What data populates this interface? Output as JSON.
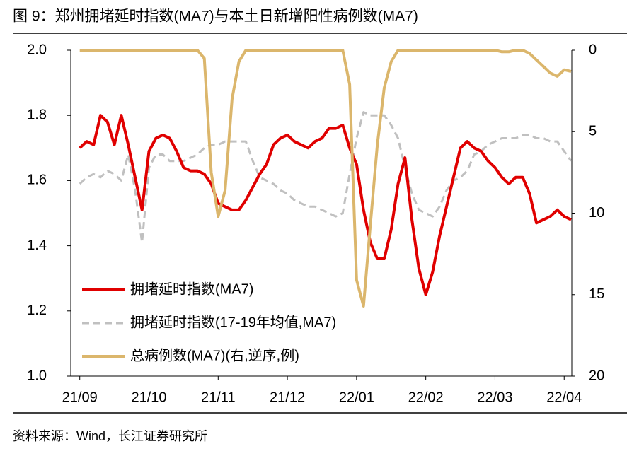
{
  "chart_data": {
    "type": "line",
    "title": "图 9：郑州拥堵延时指数(MA7)与本土日新增阳性病例数(MA7)",
    "source": "资料来源：Wind，长江证券研究所",
    "x": [
      0,
      0.1,
      0.2,
      0.3,
      0.4,
      0.5,
      0.6,
      0.7,
      0.8,
      0.9,
      1,
      1.1,
      1.2,
      1.3,
      1.4,
      1.5,
      1.6,
      1.7,
      1.8,
      1.9,
      2,
      2.1,
      2.2,
      2.3,
      2.4,
      2.5,
      2.6,
      2.7,
      2.8,
      2.9,
      3,
      3.1,
      3.2,
      3.3,
      3.4,
      3.5,
      3.6,
      3.7,
      3.8,
      3.9,
      4,
      4.1,
      4.2,
      4.3,
      4.4,
      4.5,
      4.6,
      4.7,
      4.8,
      4.9,
      5,
      5.1,
      5.2,
      5.3,
      5.4,
      5.5,
      5.6,
      5.7,
      5.8,
      5.9,
      6,
      6.1,
      6.2,
      6.3,
      6.4,
      6.5,
      6.6,
      6.7,
      6.8,
      6.9,
      7,
      7.1
    ],
    "xlim": [
      -0.13,
      7.11
    ],
    "xticks": [
      {
        "value": 0,
        "label": "21/09"
      },
      {
        "value": 1,
        "label": "21/10"
      },
      {
        "value": 2,
        "label": "21/11"
      },
      {
        "value": 3,
        "label": "21/12"
      },
      {
        "value": 4,
        "label": "22/01"
      },
      {
        "value": 5,
        "label": "22/02"
      },
      {
        "value": 6,
        "label": "22/03"
      },
      {
        "value": 7,
        "label": "22/04"
      }
    ],
    "ylim": [
      1.0,
      2.0
    ],
    "yticks": [
      {
        "value": 1,
        "label": "1.0"
      },
      {
        "value": 1.2,
        "label": "1.2"
      },
      {
        "value": 1.4,
        "label": "1.4"
      },
      {
        "value": 1.6,
        "label": "1.6"
      },
      {
        "value": 1.8,
        "label": "1.8"
      },
      {
        "value": 2,
        "label": "2.0"
      }
    ],
    "y2lim": [
      0,
      20
    ],
    "y2ticks": [
      0,
      5,
      10,
      15,
      20
    ],
    "y2_reversed": true,
    "series": [
      {
        "name": "拥堵延时指数(17-19年均值,MA7)",
        "color": "#c0c0c0",
        "dashed": true,
        "values": [
          1.59,
          1.61,
          1.62,
          1.61,
          1.63,
          1.62,
          1.6,
          1.68,
          1.57,
          1.41,
          1.64,
          1.68,
          1.68,
          1.66,
          1.66,
          1.66,
          1.67,
          1.68,
          1.7,
          1.71,
          1.71,
          1.72,
          1.72,
          1.72,
          1.72,
          1.66,
          1.61,
          1.6,
          1.59,
          1.57,
          1.56,
          1.54,
          1.53,
          1.52,
          1.52,
          1.51,
          1.5,
          1.49,
          1.5,
          1.62,
          1.73,
          1.81,
          1.8,
          1.8,
          1.8,
          1.77,
          1.73,
          1.64,
          1.56,
          1.51,
          1.5,
          1.49,
          1.52,
          1.57,
          1.6,
          1.61,
          1.63,
          1.68,
          1.69,
          1.71,
          1.72,
          1.73,
          1.73,
          1.73,
          1.74,
          1.74,
          1.73,
          1.73,
          1.72,
          1.72,
          1.69,
          1.66
        ]
      },
      {
        "name": "拥堵延时指数(MA7)",
        "color": "#e00000",
        "values": [
          1.7,
          1.72,
          1.71,
          1.8,
          1.78,
          1.71,
          1.8,
          1.71,
          1.61,
          1.51,
          1.69,
          1.73,
          1.74,
          1.73,
          1.69,
          1.64,
          1.63,
          1.63,
          1.62,
          1.59,
          1.53,
          1.52,
          1.51,
          1.51,
          1.54,
          1.58,
          1.62,
          1.65,
          1.71,
          1.73,
          1.74,
          1.72,
          1.71,
          1.7,
          1.72,
          1.73,
          1.76,
          1.76,
          1.77,
          1.7,
          1.65,
          1.51,
          1.41,
          1.36,
          1.36,
          1.45,
          1.59,
          1.67,
          1.48,
          1.33,
          1.25,
          1.32,
          1.43,
          1.52,
          1.61,
          1.7,
          1.72,
          1.7,
          1.69,
          1.66,
          1.64,
          1.61,
          1.59,
          1.61,
          1.61,
          1.56,
          1.47,
          1.48,
          1.49,
          1.51,
          1.49,
          1.48
        ]
      },
      {
        "name": "总病例数(MA7)(右,逆序,例)",
        "color": "#dbb66c",
        "axis": "y2",
        "values": [
          0,
          0,
          0,
          0,
          0,
          0,
          0,
          0,
          0,
          0,
          0,
          0,
          0,
          0,
          0,
          0,
          0,
          0,
          0.5,
          7.5,
          10.2,
          8.6,
          3.0,
          0.7,
          0,
          0,
          0,
          0,
          0,
          0,
          0,
          0,
          0,
          0,
          0,
          0,
          0,
          0,
          0,
          2.1,
          14.1,
          15.7,
          10.7,
          5.8,
          2.3,
          0.7,
          0,
          0,
          0,
          0,
          0,
          0,
          0,
          0,
          0,
          0,
          0,
          0,
          0,
          0,
          0,
          0.1,
          0.1,
          0,
          0,
          0.2,
          0.6,
          1.0,
          1.4,
          1.6,
          1.2,
          1.3
        ]
      }
    ]
  }
}
